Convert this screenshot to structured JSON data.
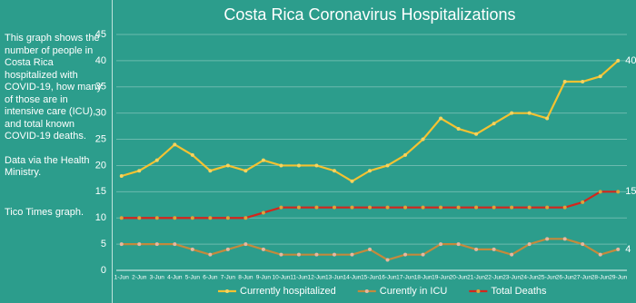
{
  "sidebar": [
    "This graph shows the number of people in Costa Rica hospitalized with COVID-19, how many of those are in intensive care (ICU), and total known COVID-19 deaths.",
    "Data via the Health Ministry.",
    "Tico Times graph."
  ],
  "chart_data": {
    "type": "line",
    "title": "Costa Rica Coronavirus Hospitalizations",
    "categories": [
      "1-Jun",
      "2-Jun",
      "3-Jun",
      "4-Jun",
      "5-Jun",
      "6-Jun",
      "7-Jun",
      "8-Jun",
      "9-Jun",
      "10-Jun",
      "11-Jun",
      "12-Jun",
      "13-Jun",
      "14-Jun",
      "15-Jun",
      "16-Jun",
      "17-Jun",
      "18-Jun",
      "19-Jun",
      "20-Jun",
      "21-Jun",
      "22-Jun",
      "23-Jun",
      "24-Jun",
      "25-Jun",
      "26-Jun",
      "27-Jun",
      "28-Jun",
      "29-Jun"
    ],
    "series": [
      {
        "name": "Currently hospitalized",
        "color": "#f5c231",
        "marker_color": "#f7d35e",
        "values": [
          18,
          19,
          21,
          24,
          22,
          19,
          20,
          19,
          21,
          20,
          20,
          20,
          19,
          17,
          19,
          20,
          22,
          25,
          29,
          27,
          26,
          28,
          30,
          30,
          29,
          36,
          36,
          37,
          40
        ]
      },
      {
        "name": "Curently in ICU",
        "color": "#c48a3c",
        "marker_color": "#e7b79f",
        "values": [
          5,
          5,
          5,
          5,
          4,
          3,
          4,
          5,
          4,
          3,
          3,
          3,
          3,
          3,
          4,
          2,
          3,
          3,
          5,
          5,
          4,
          4,
          3,
          5,
          6,
          6,
          5,
          3,
          4
        ]
      },
      {
        "name": "Total Deaths",
        "color": "#d4261c",
        "marker_color": "#e0a23a",
        "values": [
          10,
          10,
          10,
          10,
          10,
          10,
          10,
          10,
          11,
          12,
          12,
          12,
          12,
          12,
          12,
          12,
          12,
          12,
          12,
          12,
          12,
          12,
          12,
          12,
          12,
          12,
          13,
          15,
          15
        ]
      }
    ],
    "ylim": [
      0,
      45
    ],
    "yticks": [
      0,
      5,
      10,
      15,
      20,
      25,
      30,
      35,
      40,
      45
    ],
    "grid": true
  }
}
